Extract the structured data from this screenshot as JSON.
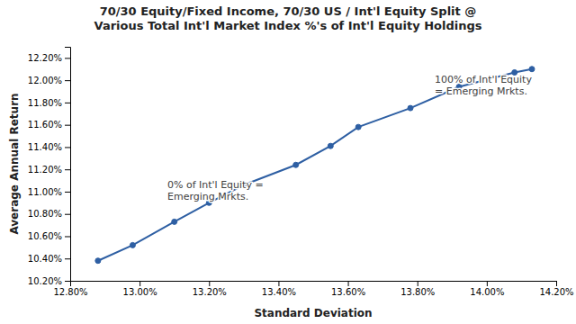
{
  "chart_data": {
    "type": "line",
    "title": "70/30 Equity/Fixed Income, 70/30 US / Int'l Equity Split @\nVarious Total Int'l Market Index %'s of Int'l Equity Holdings",
    "x_label": "Standard Deviation",
    "y_label": "Average Annual Return",
    "x": [
      0.1288,
      0.1298,
      0.131,
      0.132,
      0.133,
      0.1345,
      0.1355,
      0.1363,
      0.1378,
      0.1392,
      0.1408,
      0.1413
    ],
    "values": [
      0.1038,
      0.1052,
      0.1073,
      0.109,
      0.1106,
      0.1124,
      0.1141,
      0.1158,
      0.1175,
      0.1194,
      0.1207,
      0.121
    ],
    "color": "#2E5FA3",
    "marker": "circle",
    "xlim": [
      0.128,
      0.142
    ],
    "ylim": [
      0.102,
      0.123
    ],
    "xticks": [
      {
        "value": 0.128,
        "label": "12.80%"
      },
      {
        "value": 0.13,
        "label": "13.00%"
      },
      {
        "value": 0.132,
        "label": "13.20%"
      },
      {
        "value": 0.134,
        "label": "13.40%"
      },
      {
        "value": 0.136,
        "label": "13.60%"
      },
      {
        "value": 0.138,
        "label": "13.80%"
      },
      {
        "value": 0.14,
        "label": "14.00%"
      },
      {
        "value": 0.142,
        "label": "14.20%"
      }
    ],
    "yticks": [
      {
        "value": 0.102,
        "label": "10.20%"
      },
      {
        "value": 0.104,
        "label": "10.40%"
      },
      {
        "value": 0.106,
        "label": "10.60%"
      },
      {
        "value": 0.108,
        "label": "10.80%"
      },
      {
        "value": 0.11,
        "label": "11.00%"
      },
      {
        "value": 0.112,
        "label": "11.20%"
      },
      {
        "value": 0.114,
        "label": "11.40%"
      },
      {
        "value": 0.116,
        "label": "11.60%"
      },
      {
        "value": 0.118,
        "label": "11.80%"
      },
      {
        "value": 0.12,
        "label": "12.00%"
      },
      {
        "value": 0.122,
        "label": "12.20%"
      }
    ],
    "grid": false,
    "annotations": [
      {
        "text": "0% of Int'l Equity =\nEmerging Mrkts.",
        "x": 0.1308,
        "y": 0.109,
        "color": "#404040"
      },
      {
        "text": "100% of Int'l Equity\n= Emerging Mrkts.",
        "x": 0.1385,
        "y": 0.1185,
        "color": "#404040"
      }
    ]
  }
}
